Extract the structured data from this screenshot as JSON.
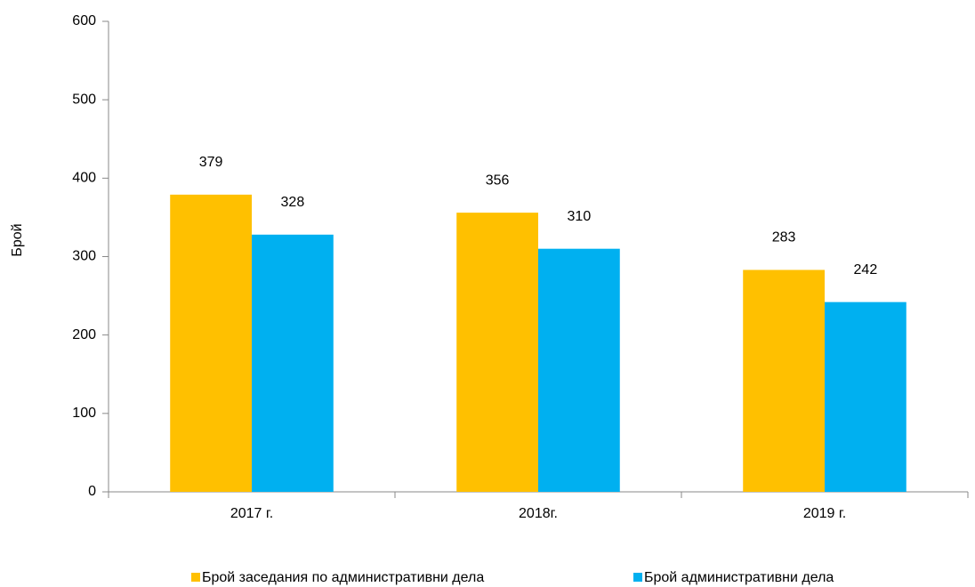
{
  "chart_data": {
    "type": "bar",
    "y_label": "Брой",
    "categories": [
      "2017 г.",
      "2018г.",
      "2019 г."
    ],
    "series": [
      {
        "name": "Брой заседания по административни дела",
        "color": "#FFC000",
        "values": [
          379,
          356,
          283
        ]
      },
      {
        "name": "Брой административни дела",
        "color": "#00B0F0",
        "values": [
          328,
          310,
          242
        ]
      }
    ],
    "ylim": [
      0,
      600
    ],
    "yticks": [
      0,
      100,
      200,
      300,
      400,
      500,
      600
    ],
    "grid": false,
    "legend": "bottom"
  }
}
